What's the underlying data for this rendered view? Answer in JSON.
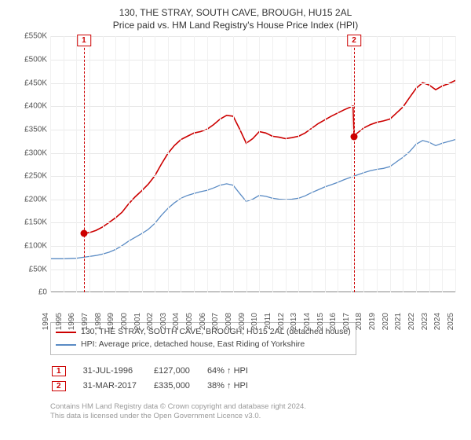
{
  "title": {
    "line1": "130, THE STRAY, SOUTH CAVE, BROUGH, HU15 2AL",
    "line2": "Price paid vs. HM Land Registry's House Price Index (HPI)"
  },
  "chart": {
    "type": "line",
    "background_color": "#ffffff",
    "grid_color": "#e8e8e8",
    "axis_color": "#888888",
    "y": {
      "min": 0,
      "max": 550000,
      "step": 50000,
      "ticks": [
        "£0",
        "£50K",
        "£100K",
        "£150K",
        "£200K",
        "£250K",
        "£300K",
        "£350K",
        "£400K",
        "£450K",
        "£500K",
        "£550K"
      ],
      "label_fontsize": 10,
      "label_color": "#555555"
    },
    "x": {
      "min": 1994,
      "max": 2025,
      "step": 1,
      "ticks": [
        "1994",
        "1995",
        "1996",
        "1997",
        "1998",
        "1999",
        "2000",
        "2001",
        "2002",
        "2003",
        "2004",
        "2005",
        "2006",
        "2007",
        "2008",
        "2009",
        "2010",
        "2011",
        "2012",
        "2013",
        "2014",
        "2015",
        "2016",
        "2017",
        "2018",
        "2019",
        "2020",
        "2021",
        "2022",
        "2023",
        "2024",
        "2025"
      ],
      "label_fontsize": 10,
      "label_color": "#555555",
      "rotate": -90
    },
    "series": [
      {
        "name": "price_paid",
        "label": "130, THE STRAY, SOUTH CAVE, BROUGH, HU15 2AL (detached house)",
        "color": "#cc0000",
        "line_width": 1.6,
        "points": [
          [
            1996.58,
            127000
          ],
          [
            1997.0,
            128000
          ],
          [
            1997.5,
            133000
          ],
          [
            1998.0,
            140000
          ],
          [
            1998.5,
            150000
          ],
          [
            1999.0,
            160000
          ],
          [
            1999.5,
            172000
          ],
          [
            2000.0,
            190000
          ],
          [
            2000.5,
            205000
          ],
          [
            2001.0,
            218000
          ],
          [
            2001.5,
            232000
          ],
          [
            2002.0,
            250000
          ],
          [
            2002.5,
            275000
          ],
          [
            2003.0,
            298000
          ],
          [
            2003.5,
            315000
          ],
          [
            2004.0,
            328000
          ],
          [
            2004.5,
            335000
          ],
          [
            2005.0,
            342000
          ],
          [
            2005.5,
            345000
          ],
          [
            2006.0,
            350000
          ],
          [
            2006.5,
            360000
          ],
          [
            2007.0,
            372000
          ],
          [
            2007.5,
            380000
          ],
          [
            2008.0,
            378000
          ],
          [
            2008.5,
            350000
          ],
          [
            2009.0,
            320000
          ],
          [
            2009.5,
            330000
          ],
          [
            2010.0,
            345000
          ],
          [
            2010.5,
            342000
          ],
          [
            2011.0,
            335000
          ],
          [
            2011.5,
            333000
          ],
          [
            2012.0,
            330000
          ],
          [
            2012.5,
            332000
          ],
          [
            2013.0,
            335000
          ],
          [
            2013.5,
            342000
          ],
          [
            2014.0,
            352000
          ],
          [
            2014.5,
            362000
          ],
          [
            2015.0,
            370000
          ],
          [
            2015.5,
            378000
          ],
          [
            2016.0,
            385000
          ],
          [
            2016.5,
            392000
          ],
          [
            2017.0,
            398000
          ],
          [
            2017.17,
            400000
          ],
          [
            2017.25,
            335000
          ],
          [
            2017.5,
            342000
          ],
          [
            2018.0,
            353000
          ],
          [
            2018.5,
            360000
          ],
          [
            2019.0,
            365000
          ],
          [
            2019.5,
            368000
          ],
          [
            2020.0,
            372000
          ],
          [
            2020.5,
            385000
          ],
          [
            2021.0,
            398000
          ],
          [
            2021.5,
            418000
          ],
          [
            2022.0,
            438000
          ],
          [
            2022.5,
            450000
          ],
          [
            2023.0,
            445000
          ],
          [
            2023.5,
            435000
          ],
          [
            2024.0,
            443000
          ],
          [
            2024.5,
            448000
          ],
          [
            2025.0,
            455000
          ]
        ]
      },
      {
        "name": "hpi",
        "label": "HPI: Average price, detached house, East Riding of Yorkshire",
        "color": "#5a8bc4",
        "line_width": 1.3,
        "points": [
          [
            1994.0,
            72000
          ],
          [
            1995.0,
            72000
          ],
          [
            1996.0,
            73000
          ],
          [
            1996.5,
            75000
          ],
          [
            1997.0,
            77000
          ],
          [
            1997.5,
            79000
          ],
          [
            1998.0,
            82000
          ],
          [
            1998.5,
            86000
          ],
          [
            1999.0,
            92000
          ],
          [
            1999.5,
            100000
          ],
          [
            2000.0,
            110000
          ],
          [
            2000.5,
            118000
          ],
          [
            2001.0,
            126000
          ],
          [
            2001.5,
            135000
          ],
          [
            2002.0,
            148000
          ],
          [
            2002.5,
            165000
          ],
          [
            2003.0,
            180000
          ],
          [
            2003.5,
            192000
          ],
          [
            2004.0,
            202000
          ],
          [
            2004.5,
            208000
          ],
          [
            2005.0,
            212000
          ],
          [
            2005.5,
            216000
          ],
          [
            2006.0,
            219000
          ],
          [
            2006.5,
            224000
          ],
          [
            2007.0,
            230000
          ],
          [
            2007.5,
            233000
          ],
          [
            2008.0,
            230000
          ],
          [
            2008.5,
            212000
          ],
          [
            2009.0,
            195000
          ],
          [
            2009.5,
            200000
          ],
          [
            2010.0,
            208000
          ],
          [
            2010.5,
            206000
          ],
          [
            2011.0,
            202000
          ],
          [
            2011.5,
            200000
          ],
          [
            2012.0,
            199000
          ],
          [
            2012.5,
            200000
          ],
          [
            2013.0,
            202000
          ],
          [
            2013.5,
            207000
          ],
          [
            2014.0,
            214000
          ],
          [
            2014.5,
            220000
          ],
          [
            2015.0,
            226000
          ],
          [
            2015.5,
            231000
          ],
          [
            2016.0,
            236000
          ],
          [
            2016.5,
            242000
          ],
          [
            2017.0,
            247000
          ],
          [
            2017.5,
            252000
          ],
          [
            2018.0,
            257000
          ],
          [
            2018.5,
            261000
          ],
          [
            2019.0,
            264000
          ],
          [
            2019.5,
            266000
          ],
          [
            2020.0,
            270000
          ],
          [
            2020.5,
            280000
          ],
          [
            2021.0,
            290000
          ],
          [
            2021.5,
            302000
          ],
          [
            2022.0,
            318000
          ],
          [
            2022.5,
            326000
          ],
          [
            2023.0,
            322000
          ],
          [
            2023.5,
            315000
          ],
          [
            2024.0,
            320000
          ],
          [
            2024.5,
            324000
          ],
          [
            2025.0,
            328000
          ]
        ]
      }
    ],
    "reference_lines": [
      {
        "x": 1996.58,
        "label": "1",
        "color": "#cc0000"
      },
      {
        "x": 2017.25,
        "label": "2",
        "color": "#cc0000"
      }
    ],
    "sale_points": [
      {
        "x": 1996.58,
        "y": 127000,
        "color": "#cc0000"
      },
      {
        "x": 2017.25,
        "y": 335000,
        "color": "#cc0000"
      }
    ]
  },
  "legend": {
    "border_color": "#bbbbbb",
    "items": [
      {
        "color": "#cc0000",
        "label": "130, THE STRAY, SOUTH CAVE, BROUGH, HU15 2AL (detached house)"
      },
      {
        "color": "#5a8bc4",
        "label": "HPI: Average price, detached house, East Riding of Yorkshire"
      }
    ]
  },
  "sales": [
    {
      "badge": "1",
      "date": "31-JUL-1996",
      "price": "£127,000",
      "delta": "64% ↑ HPI"
    },
    {
      "badge": "2",
      "date": "31-MAR-2017",
      "price": "£335,000",
      "delta": "38% ↑ HPI"
    }
  ],
  "footer": {
    "line1": "Contains HM Land Registry data © Crown copyright and database right 2024.",
    "line2": "This data is licensed under the Open Government Licence v3.0."
  }
}
